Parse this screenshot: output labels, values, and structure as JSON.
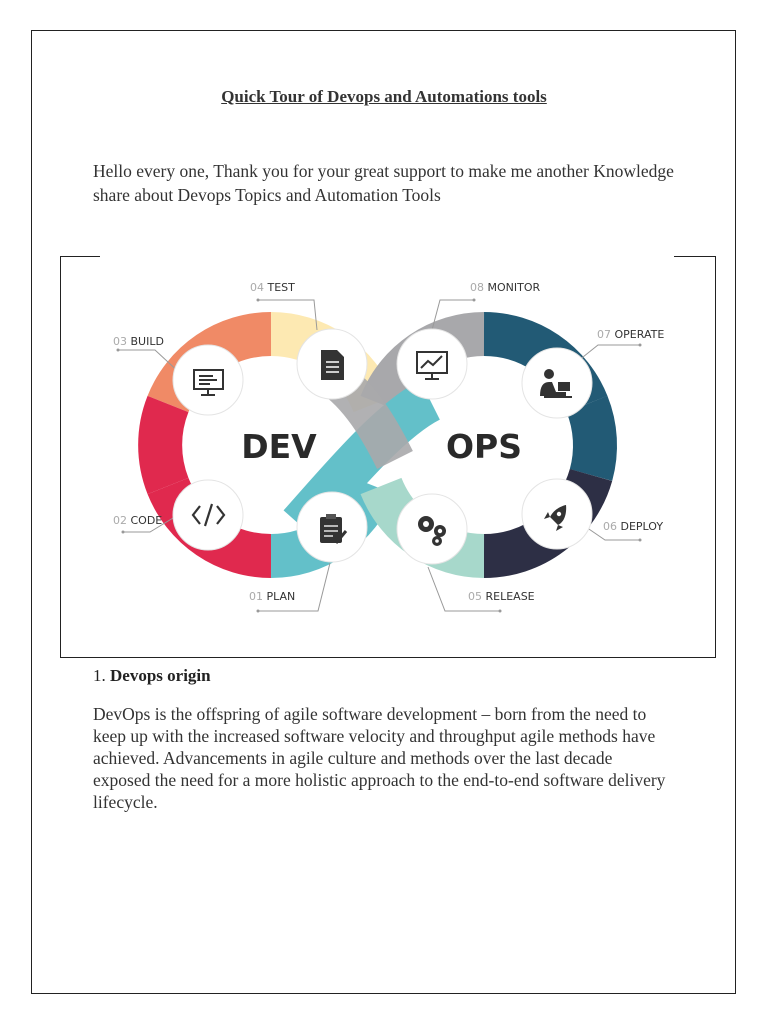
{
  "document": {
    "title": "Quick Tour of Devops and Automations tools",
    "intro": "Hello every one, Thank you for your great support to make me another Knowledge share about Devops Topics and Automation Tools"
  },
  "diagram": {
    "dev_label": "DEV",
    "ops_label": "OPS",
    "stages": [
      {
        "num": "01",
        "name": "PLAN",
        "icon": "clipboard-icon"
      },
      {
        "num": "02",
        "name": "CODE",
        "icon": "code-icon"
      },
      {
        "num": "03",
        "name": "BUILD",
        "icon": "monitor-icon"
      },
      {
        "num": "04",
        "name": "TEST",
        "icon": "checklist-icon"
      },
      {
        "num": "05",
        "name": "RELEASE",
        "icon": "gears-icon"
      },
      {
        "num": "06",
        "name": "DEPLOY",
        "icon": "rocket-icon"
      },
      {
        "num": "07",
        "name": "OPERATE",
        "icon": "person-laptop-icon"
      },
      {
        "num": "08",
        "name": "MONITOR",
        "icon": "chart-monitor-icon"
      }
    ],
    "colors": {
      "plan": "#63c0c9",
      "code": "#e0294e",
      "build": "#f08a66",
      "test": "#fde9b2",
      "release": "#a7d8cb",
      "deploy": "#2d2f45",
      "operate": "#225a75",
      "monitor": "#a8a8ab"
    }
  },
  "section": {
    "number": "1.",
    "heading": "Devops origin",
    "body": "DevOps is the offspring of agile software development – born from the need to keep up with the increased software velocity and throughput agile methods have achieved. Advancements in agile culture and methods over the last decade exposed the need for a more holistic approach to the end-to-end software delivery lifecycle."
  }
}
